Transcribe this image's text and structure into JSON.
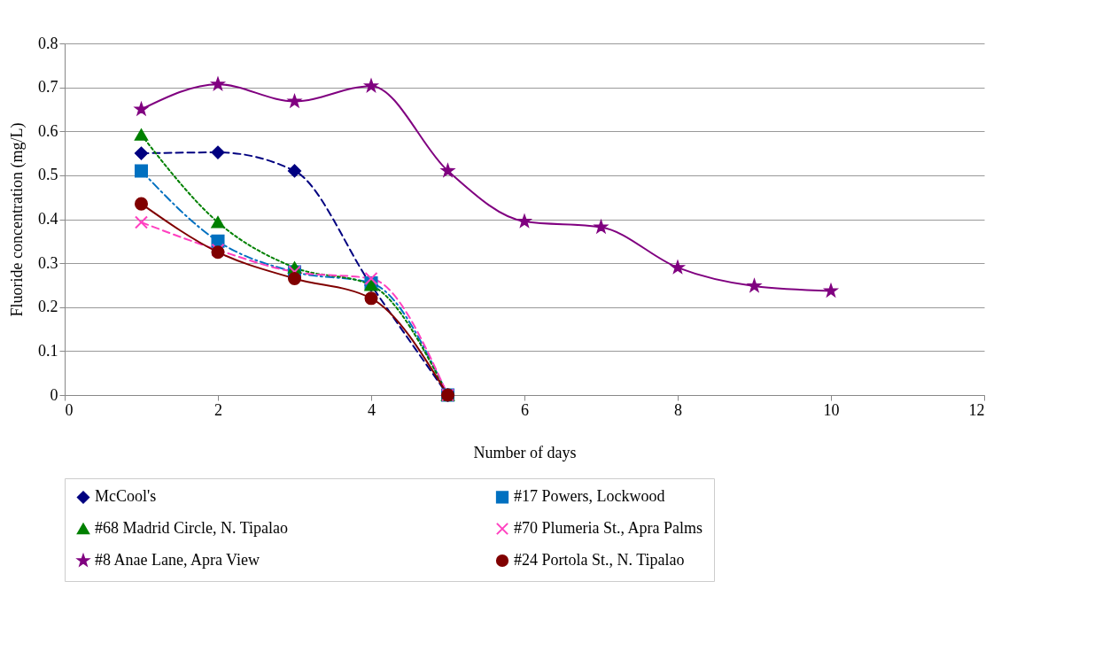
{
  "chart_data": {
    "type": "line",
    "xlabel": "Number of days",
    "ylabel": "Fluoride concentration (mg/L)",
    "xlim": [
      0,
      12
    ],
    "xticks": [
      0,
      2,
      4,
      6,
      8,
      10,
      12
    ],
    "ylim": [
      0,
      0.8
    ],
    "yticks": [
      0,
      0.1,
      0.2,
      0.3,
      0.4,
      0.5,
      0.6,
      0.7,
      0.8
    ],
    "grid": "y",
    "legend": "bottom",
    "series": [
      {
        "name": "McCool's",
        "color": "#000080",
        "marker": "diamond",
        "line_style": "dashed",
        "x": [
          1,
          2,
          3,
          4,
          5
        ],
        "values": [
          0.55,
          0.552,
          0.51,
          0.25,
          0
        ]
      },
      {
        "name": "#17 Powers, Lockwood",
        "color": "#0070c0",
        "marker": "square",
        "line_style": "dashdot",
        "x": [
          1,
          2,
          3,
          4,
          5
        ],
        "values": [
          0.51,
          0.35,
          0.28,
          0.255,
          0
        ]
      },
      {
        "name": "#68 Madrid Circle, N. Tipalao",
        "color": "#008000",
        "marker": "triangle",
        "line_style": "dotted",
        "x": [
          1,
          2,
          3,
          4,
          5
        ],
        "values": [
          0.592,
          0.393,
          0.29,
          0.25,
          0
        ]
      },
      {
        "name": "#70 Plumeria St., Apra Palms",
        "color": "#ff40c0",
        "marker": "cross",
        "line_style": "dashed",
        "x": [
          1,
          2,
          3,
          4,
          5
        ],
        "values": [
          0.393,
          0.33,
          0.28,
          0.265,
          0
        ]
      },
      {
        "name": "#8 Anae Lane, Apra View",
        "color": "#800080",
        "marker": "star",
        "line_style": "solid",
        "x": [
          1,
          2,
          3,
          4,
          5,
          6,
          7,
          8,
          9,
          10
        ],
        "values": [
          0.65,
          0.707,
          0.668,
          0.703,
          0.51,
          0.395,
          0.382,
          0.29,
          0.248,
          0.237
        ]
      },
      {
        "name": "#24 Portola St., N. Tipalao",
        "color": "#800000",
        "marker": "circle",
        "line_style": "solid",
        "x": [
          1,
          2,
          3,
          4,
          5
        ],
        "values": [
          0.435,
          0.325,
          0.265,
          0.22,
          0
        ]
      }
    ]
  }
}
